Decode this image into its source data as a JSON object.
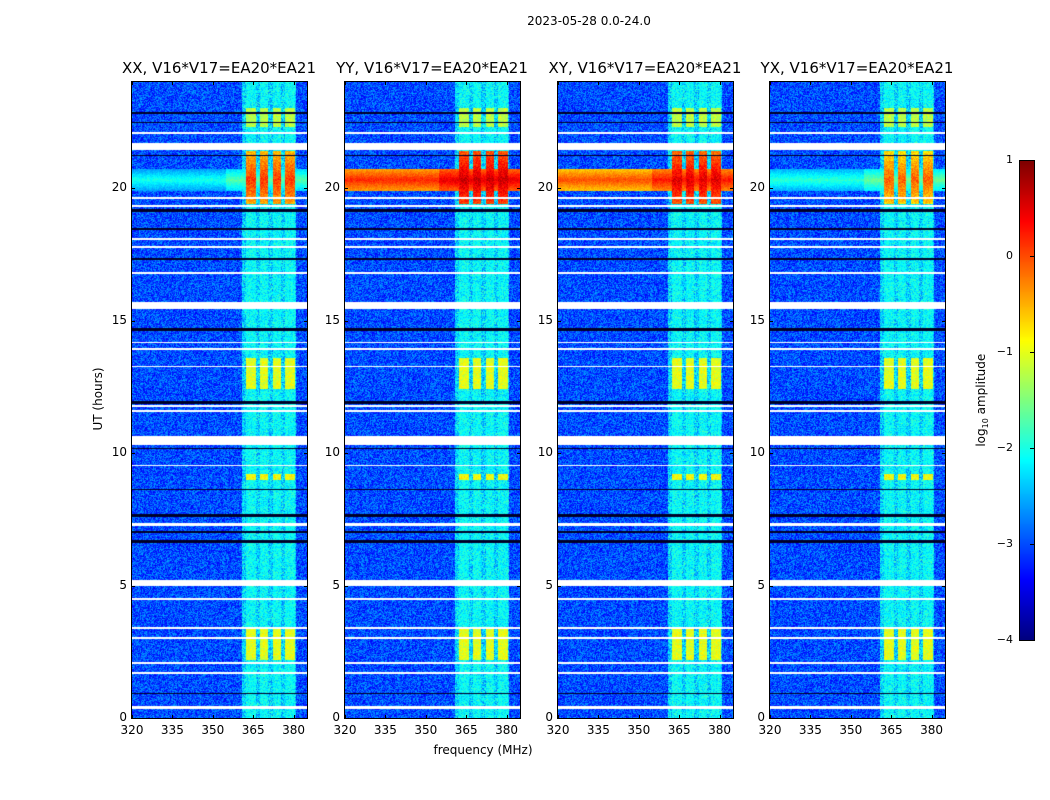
{
  "suptitle": "2023-05-28 0.0-24.0",
  "xlabel": "frequency (MHz)",
  "ylabel": "UT (hours)",
  "colorbar": {
    "label_main": "log",
    "label_sub": "10",
    "label_rest": " amplitude",
    "ticks": [
      1,
      0,
      -1,
      -2,
      -3,
      -4
    ],
    "range": [
      -4,
      1
    ],
    "colormap": "jet"
  },
  "chart_data": {
    "type": "heatmap",
    "title": "2023-05-28 0.0-24.0",
    "xlabel": "frequency (MHz)",
    "ylabel": "UT (hours)",
    "xlim": [
      320,
      385
    ],
    "ylim": [
      0,
      24
    ],
    "xticks": [
      320,
      335,
      350,
      365,
      380
    ],
    "yticks": [
      0,
      5,
      10,
      15,
      20
    ],
    "value_label": "log10 amplitude",
    "value_range": [
      -4,
      1
    ],
    "background_level": -3.0,
    "panels": [
      {
        "title": "XX, V16*V17=EA20*EA21",
        "broadband_rfi_level": -2.0,
        "rfi_peak_level": 0.6
      },
      {
        "title": "YY, V16*V17=EA20*EA21",
        "broadband_rfi_level": 0.2,
        "rfi_peak_level": 0.6
      },
      {
        "title": "XY, V16*V17=EA20*EA21",
        "broadband_rfi_level": 0.0,
        "rfi_peak_level": 0.5
      },
      {
        "title": "YX, V16*V17=EA20*EA21",
        "broadband_rfi_level": -1.9,
        "rfi_peak_level": 0.4
      }
    ],
    "rfi_channels_mhz": [
      [
        362.5,
        366
      ],
      [
        367.5,
        370.5
      ],
      [
        372.5,
        375.5
      ],
      [
        377,
        380.5
      ]
    ],
    "rfi_time_blocks": [
      {
        "ut": [
          2.2,
          3.4
        ],
        "level": -1.0
      },
      {
        "ut": [
          12.4,
          13.6
        ],
        "level": -1.0
      },
      {
        "ut": [
          19.4,
          21.4
        ],
        "level": 0.3
      },
      {
        "ut": [
          22.3,
          23.0
        ],
        "level": -1.2
      },
      {
        "ut": [
          9.0,
          9.2
        ],
        "level": -0.9
      }
    ],
    "broadband_rfi_ut": [
      19.9,
      20.7
    ],
    "flagged_ut": [
      [
        0.35,
        0.45
      ],
      [
        1.65,
        1.75
      ],
      [
        2.05,
        2.12
      ],
      [
        3.0,
        3.05
      ],
      [
        3.35,
        3.42
      ],
      [
        4.45,
        4.52
      ],
      [
        5.0,
        5.2
      ],
      [
        7.25,
        7.35
      ],
      [
        9.5,
        9.56
      ],
      [
        10.3,
        10.65
      ],
      [
        11.55,
        11.62
      ],
      [
        11.75,
        11.8
      ],
      [
        13.25,
        13.3
      ],
      [
        13.9,
        13.95
      ],
      [
        14.15,
        14.2
      ],
      [
        15.45,
        15.7
      ],
      [
        16.75,
        16.82
      ],
      [
        17.75,
        17.8
      ],
      [
        18.05,
        18.1
      ],
      [
        19.3,
        19.36
      ],
      [
        19.6,
        19.65
      ],
      [
        21.45,
        21.7
      ],
      [
        22.05,
        22.12
      ]
    ],
    "dropout_ut": [
      [
        0.9,
        0.95
      ],
      [
        6.6,
        6.7
      ],
      [
        7.0,
        7.05
      ],
      [
        7.6,
        7.7
      ],
      [
        8.6,
        8.66
      ],
      [
        10.15,
        10.2
      ],
      [
        11.85,
        11.95
      ],
      [
        14.6,
        14.7
      ],
      [
        17.3,
        17.35
      ],
      [
        18.4,
        18.5
      ],
      [
        19.1,
        19.2
      ],
      [
        21.2,
        21.25
      ],
      [
        22.45,
        22.5
      ],
      [
        22.8,
        22.85
      ]
    ]
  }
}
